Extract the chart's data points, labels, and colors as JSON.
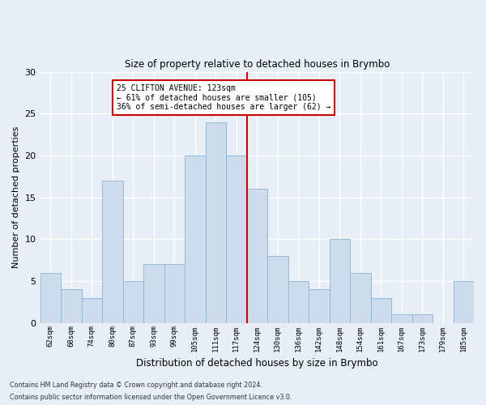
{
  "title2": "Size of property relative to detached houses in Brymbo",
  "xlabel": "Distribution of detached houses by size in Brymbo",
  "ylabel": "Number of detached properties",
  "categories": [
    "62sqm",
    "68sqm",
    "74sqm",
    "80sqm",
    "87sqm",
    "93sqm",
    "99sqm",
    "105sqm",
    "111sqm",
    "117sqm",
    "124sqm",
    "130sqm",
    "136sqm",
    "142sqm",
    "148sqm",
    "154sqm",
    "161sqm",
    "167sqm",
    "173sqm",
    "179sqm",
    "185sqm"
  ],
  "values": [
    6,
    4,
    3,
    17,
    5,
    7,
    7,
    20,
    24,
    20,
    16,
    8,
    5,
    4,
    10,
    6,
    3,
    1,
    1,
    0,
    5
  ],
  "bar_color": "#ccdcec",
  "bar_edge_color": "#8ab4d4",
  "annotation_text": "25 CLIFTON AVENUE: 123sqm\n← 61% of detached houses are smaller (105)\n36% of semi-detached houses are larger (62) →",
  "annotation_box_color": "#ffffff",
  "annotation_edge_color": "#cc0000",
  "vline_color": "#cc0000",
  "ylim": [
    0,
    30
  ],
  "yticks": [
    0,
    5,
    10,
    15,
    20,
    25,
    30
  ],
  "footer1": "Contains HM Land Registry data © Crown copyright and database right 2024.",
  "footer2": "Contains public sector information licensed under the Open Government Licence v3.0.",
  "bg_color": "#e8eef5",
  "grid_color": "#ffffff",
  "vline_x_idx": 9.5
}
